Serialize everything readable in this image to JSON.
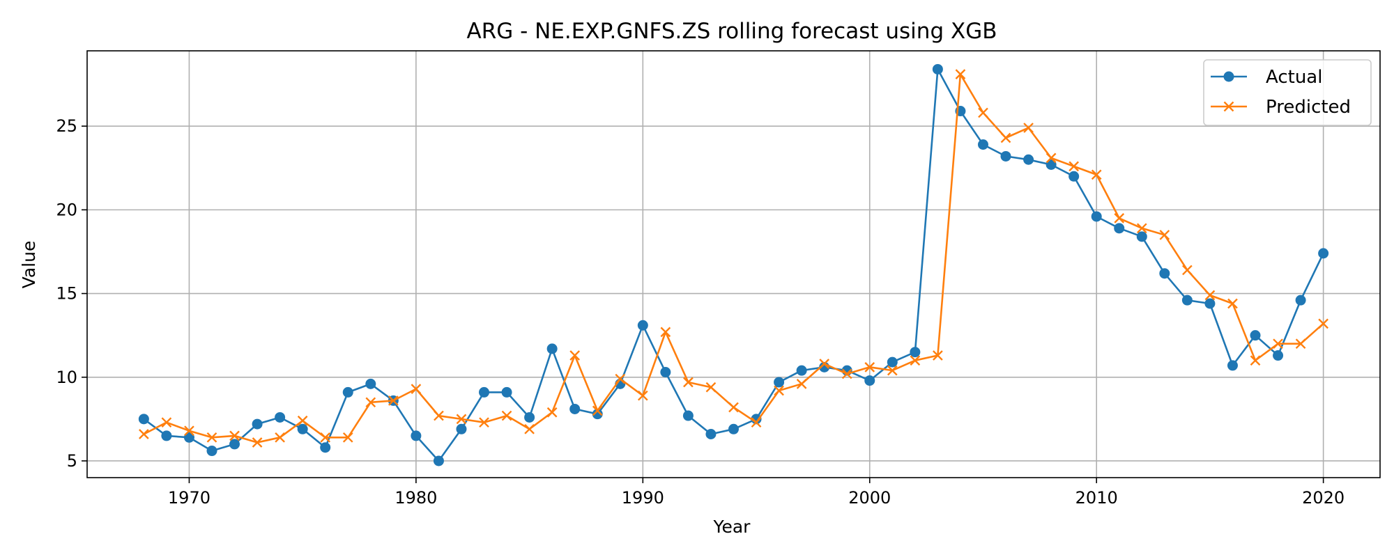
{
  "chart_data": {
    "type": "line",
    "title": "ARG - NE.EXP.GNFS.ZS rolling forecast using XGB",
    "xlabel": "Year",
    "ylabel": "Value",
    "xlim": [
      1965.5,
      2022.5
    ],
    "ylim": [
      4,
      29.5
    ],
    "xticks": [
      1970,
      1980,
      1990,
      2000,
      2010,
      2020
    ],
    "yticks": [
      5,
      10,
      15,
      20,
      25
    ],
    "grid": true,
    "legend_position": "top-right",
    "x": [
      1968,
      1969,
      1970,
      1971,
      1972,
      1973,
      1974,
      1975,
      1976,
      1977,
      1978,
      1979,
      1980,
      1981,
      1982,
      1983,
      1984,
      1985,
      1986,
      1987,
      1988,
      1989,
      1990,
      1991,
      1992,
      1993,
      1994,
      1995,
      1996,
      1997,
      1998,
      1999,
      2000,
      2001,
      2002,
      2003,
      2004,
      2005,
      2006,
      2007,
      2008,
      2009,
      2010,
      2011,
      2012,
      2013,
      2014,
      2015,
      2016,
      2017,
      2018,
      2019,
      2020
    ],
    "series": [
      {
        "name": "Actual",
        "color": "#1f77b4",
        "marker": "circle",
        "values": [
          7.5,
          6.5,
          6.4,
          5.6,
          6.0,
          7.2,
          7.6,
          6.9,
          5.8,
          9.1,
          9.6,
          8.6,
          6.5,
          5.0,
          6.9,
          9.1,
          9.1,
          7.6,
          11.7,
          8.1,
          7.8,
          9.6,
          13.1,
          10.3,
          7.7,
          6.6,
          6.9,
          7.5,
          9.7,
          10.4,
          10.6,
          10.4,
          9.8,
          10.9,
          11.5,
          28.4,
          25.9,
          23.9,
          23.2,
          23.0,
          22.7,
          22.0,
          19.6,
          18.9,
          18.4,
          16.2,
          14.6,
          14.4,
          10.7,
          12.5,
          11.3,
          14.6,
          17.4
        ]
      },
      {
        "name": "Predicted",
        "color": "#ff7f0e",
        "marker": "x",
        "values": [
          6.6,
          7.3,
          6.8,
          6.4,
          6.5,
          6.1,
          6.4,
          7.4,
          6.4,
          6.4,
          8.5,
          8.6,
          9.3,
          7.7,
          7.5,
          7.3,
          7.7,
          6.9,
          7.9,
          11.3,
          8.0,
          9.9,
          8.9,
          12.7,
          9.7,
          9.4,
          8.2,
          7.3,
          9.2,
          9.6,
          10.8,
          10.2,
          10.6,
          10.4,
          11.0,
          11.3,
          28.1,
          25.8,
          24.3,
          24.9,
          23.1,
          22.6,
          22.1,
          19.5,
          18.9,
          18.5,
          16.4,
          14.9,
          14.4,
          11.0,
          12.0,
          12.0,
          13.2
        ]
      }
    ]
  }
}
